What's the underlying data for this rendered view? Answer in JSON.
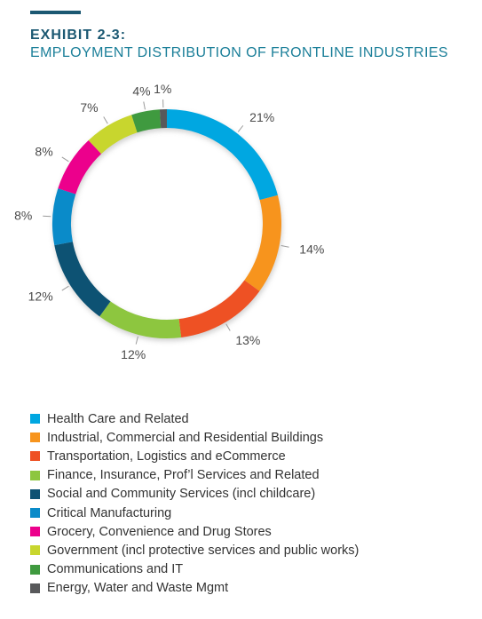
{
  "header": {
    "exhibit": "EXHIBIT 2-3:",
    "subtitle": "EMPLOYMENT DISTRIBUTION OF FRONTLINE INDUSTRIES"
  },
  "chart_data": {
    "type": "pie",
    "title": "EMPLOYMENT DISTRIBUTION OF FRONTLINE INDUSTRIES",
    "categories": [
      "Health Care and Related",
      "Industrial, Commercial and Residential Buildings",
      "Transportation, Logistics and eCommerce",
      "Finance, Insurance, Prof’l Services and Related",
      "Social and Community Services (incl childcare)",
      "Critical Manufacturing",
      "Grocery, Convenience and Drug Stores",
      "Government (incl protective services and public works)",
      "Communications and IT",
      "Energy, Water and Waste Mgmt"
    ],
    "values": [
      21,
      14,
      13,
      12,
      12,
      8,
      8,
      7,
      4,
      1
    ],
    "data_labels": [
      "21%",
      "14%",
      "13%",
      "12%",
      "12%",
      "8%",
      "8%",
      "7%",
      "4%",
      "1%"
    ],
    "colors": [
      "#00a7e1",
      "#f7941d",
      "#ee5124",
      "#8dc63f",
      "#0d5273",
      "#0a8bc9",
      "#ec008c",
      "#c8d62e",
      "#3f9a3f",
      "#58595b"
    ],
    "donut": true,
    "legend": "bottom"
  }
}
